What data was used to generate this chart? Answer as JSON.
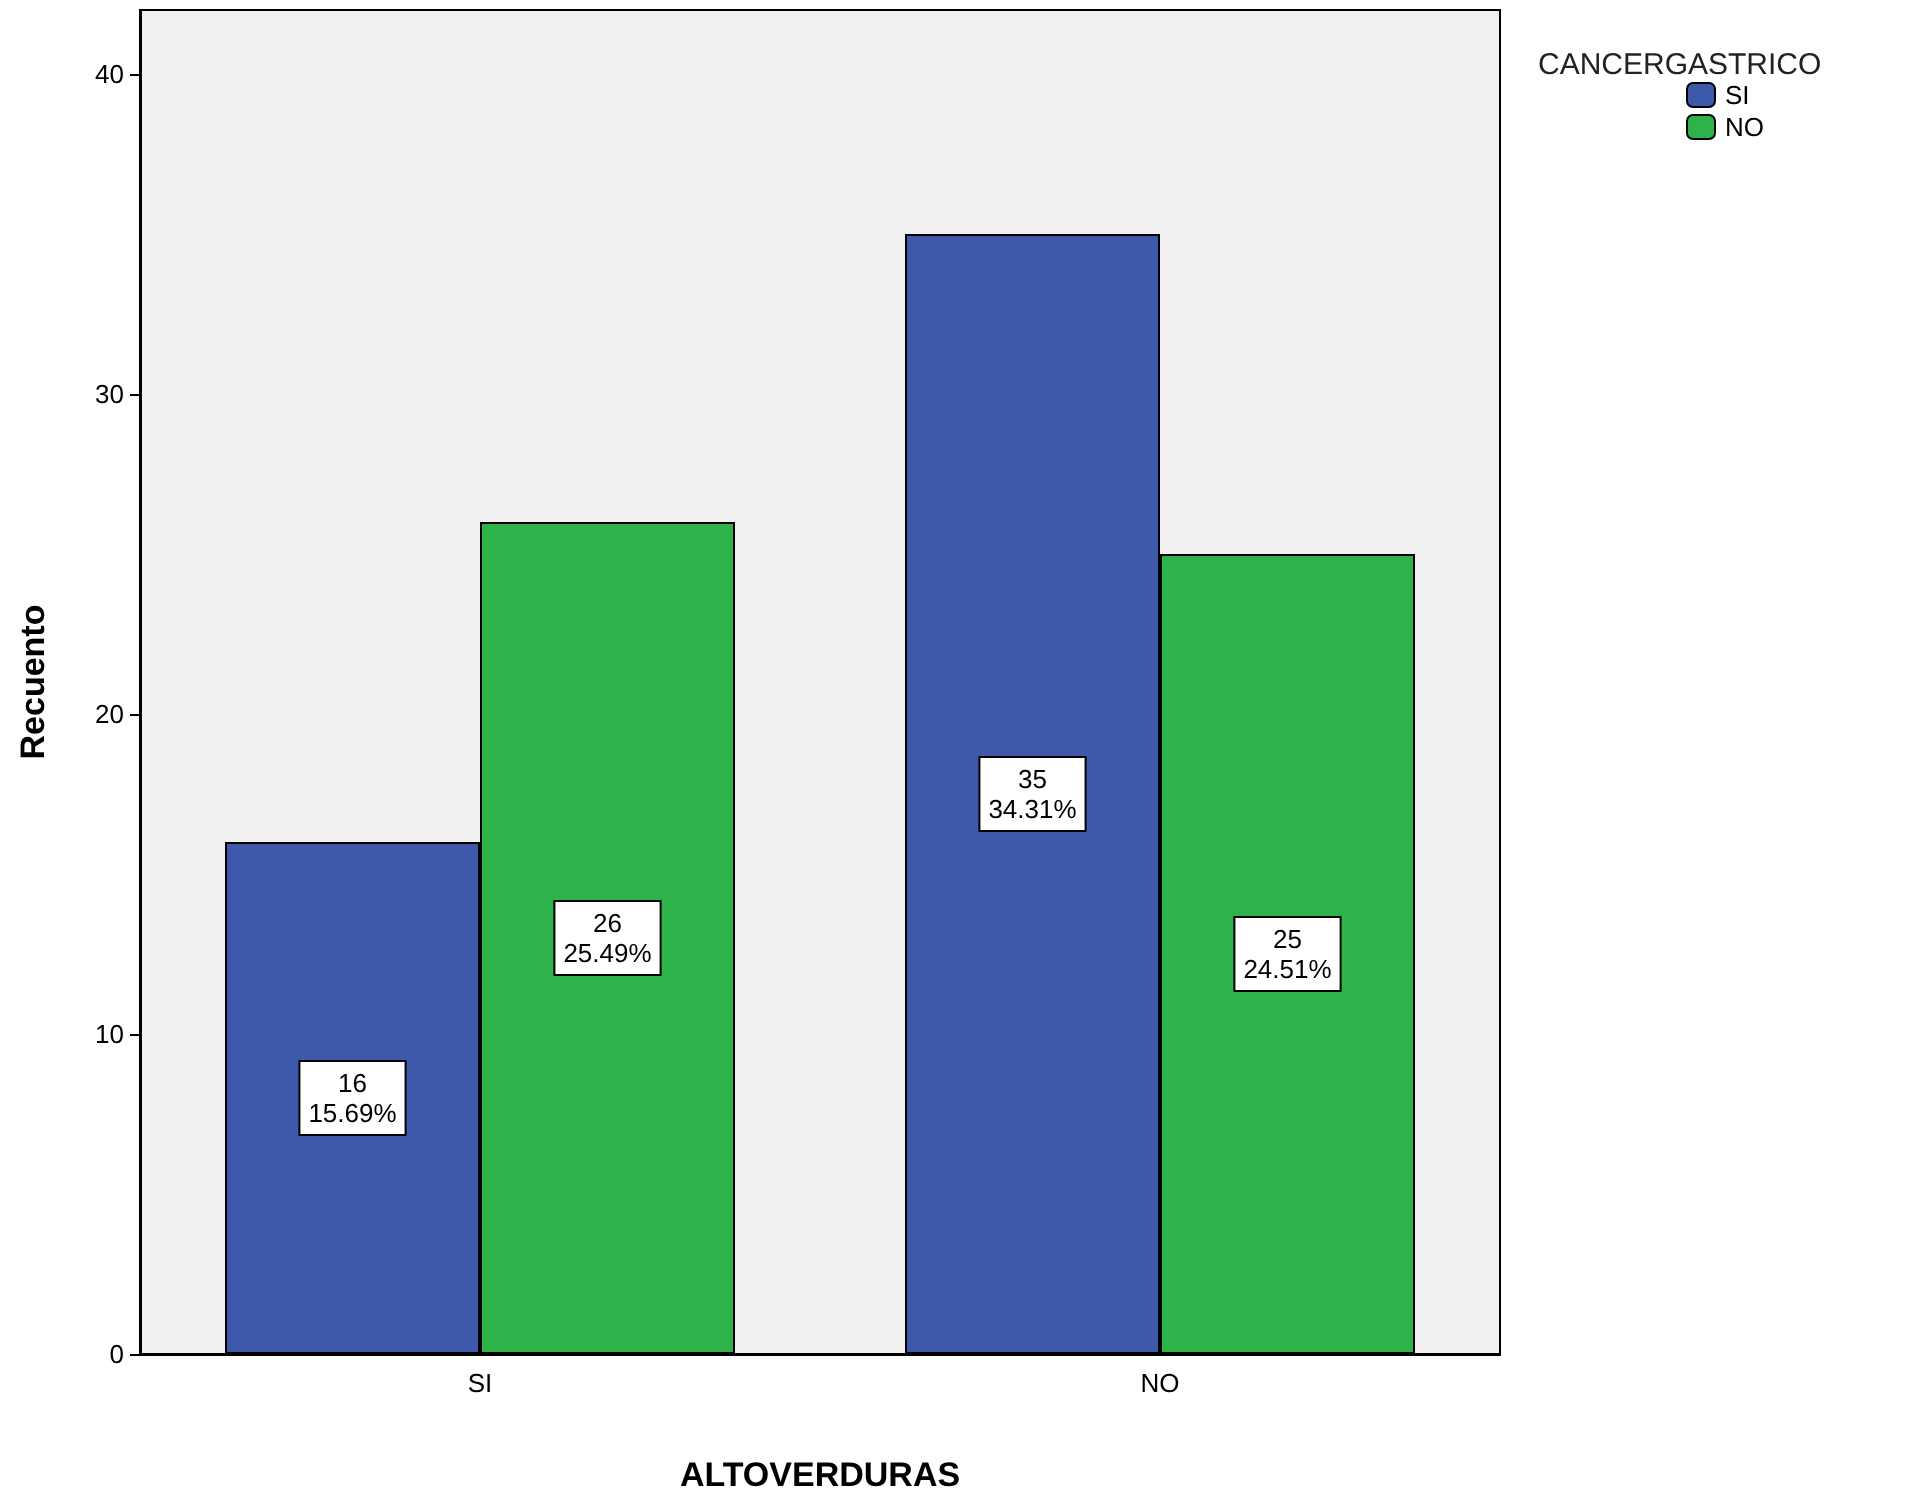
{
  "chart_data": {
    "type": "bar",
    "xlabel": "ALTOVERDURAS",
    "ylabel": "Recuento",
    "legend_title": "CANCERGASTRICO",
    "categories": [
      "SI",
      "NO"
    ],
    "series": [
      {
        "name": "SI",
        "color": "#3e58ac",
        "values": [
          16,
          35
        ],
        "value_labels": [
          "16\n15.69%",
          "35\n34.31%"
        ]
      },
      {
        "name": "NO",
        "color": "#2db34a",
        "values": [
          26,
          25
        ],
        "value_labels": [
          "26\n25.49%",
          "25\n24.51%"
        ]
      }
    ],
    "ylim": [
      0,
      42
    ],
    "yticks": [
      0,
      10,
      20,
      30,
      40
    ],
    "grid": false,
    "legend": "top right"
  }
}
